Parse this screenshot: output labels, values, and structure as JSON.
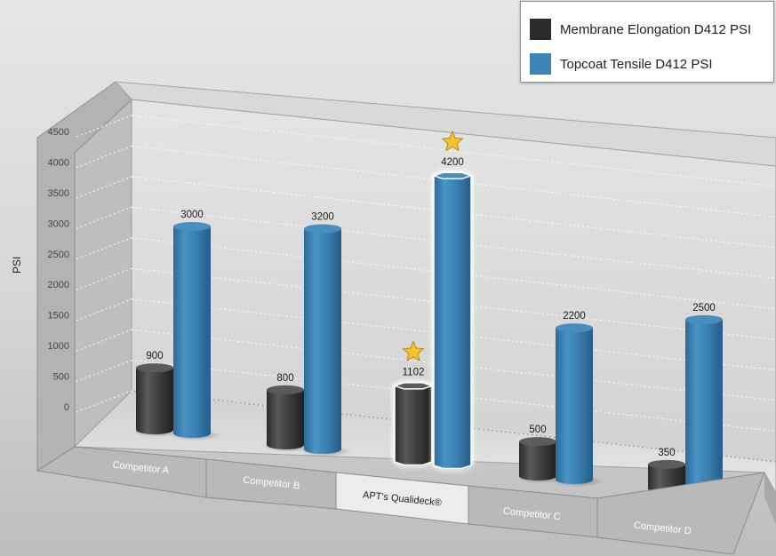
{
  "chart_data": {
    "type": "bar",
    "ylabel": "PSI",
    "ylim": [
      0,
      4500
    ],
    "yticks": [
      "0",
      "500",
      "1000",
      "1500",
      "2000",
      "2500",
      "3000",
      "3500",
      "4000",
      "4500"
    ],
    "grid": true,
    "legend_position": "top-right",
    "categories": [
      "Competitor A",
      "Competitor B",
      "APT's Qualideck®",
      "Competitor C",
      "Competitor D"
    ],
    "series": [
      {
        "name": "Membrane Elongation D412 PSI",
        "color": "#2f2f2f",
        "values": [
          900,
          800,
          1102,
          500,
          350
        ]
      },
      {
        "name": "Topcoat Tensile D412 PSI",
        "color": "#3f84b6",
        "values": [
          3000,
          3200,
          4200,
          2200,
          2500
        ]
      }
    ],
    "highlight_category": "APT's Qualideck®",
    "highlight_icon": "star-icon"
  }
}
